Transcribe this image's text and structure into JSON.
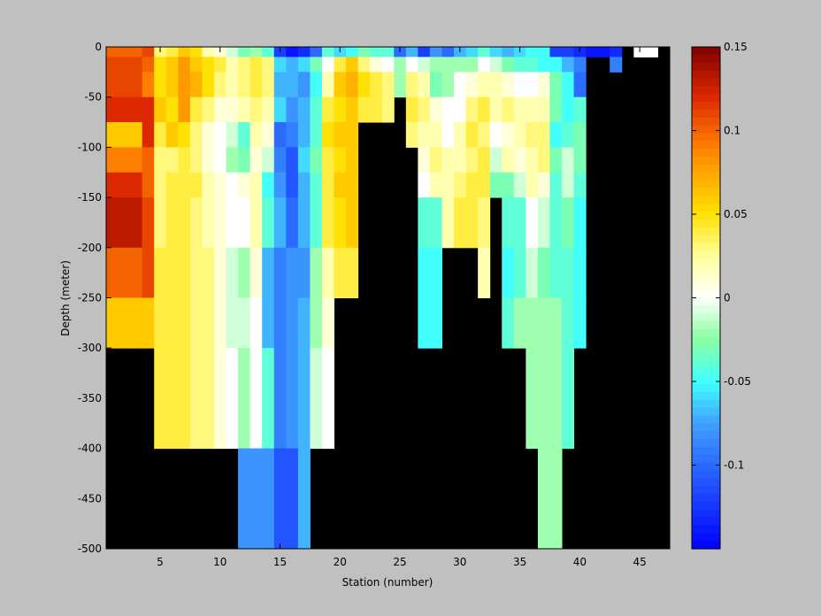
{
  "chart_data": {
    "type": "heatmap",
    "title": "",
    "xlabel": "Station (number)",
    "ylabel": "Depth (meter)",
    "xlim": [
      1,
      47
    ],
    "ylim": [
      -500,
      0
    ],
    "xticks": [
      5,
      10,
      15,
      20,
      25,
      30,
      35,
      40,
      45
    ],
    "yticks": [
      0,
      -50,
      -100,
      -150,
      -200,
      -250,
      -300,
      -350,
      -400,
      -450,
      -500
    ],
    "x_tick_labels": [
      "5",
      "10",
      "15",
      "20",
      "25",
      "30",
      "35",
      "40",
      "45"
    ],
    "y_tick_labels": [
      "0",
      "-50",
      "-100",
      "-150",
      "-200",
      "-250",
      "-300",
      "-350",
      "-400",
      "-450",
      "-500"
    ],
    "colorbar": {
      "range": [
        -0.15,
        0.15
      ],
      "ticks": [
        0.15,
        0.1,
        0.05,
        0,
        -0.05,
        -0.1
      ],
      "tick_labels": [
        "0.15",
        "0.1",
        "0.05",
        "0",
        "-0.05",
        "-0.1"
      ]
    },
    "missing_color": "#000000",
    "depth_levels": [
      0,
      -10,
      -25,
      -50,
      -75,
      -100,
      -125,
      -150,
      -200,
      -250,
      -300,
      -400,
      -500
    ],
    "stations": [
      {
        "x": 1,
        "v": [
          0.1,
          0.11,
          0.11,
          0.12,
          0.06,
          0.09,
          0.12,
          0.13,
          0.1,
          0.06
        ]
      },
      {
        "x": 2,
        "v": [
          0.1,
          0.11,
          0.11,
          0.12,
          0.06,
          0.09,
          0.12,
          0.13,
          0.1,
          0.06
        ]
      },
      {
        "x": 3,
        "v": [
          0.1,
          0.11,
          0.11,
          0.12,
          0.06,
          0.09,
          0.12,
          0.13,
          0.1,
          0.06
        ]
      },
      {
        "x": 4,
        "v": [
          0.11,
          0.1,
          0.09,
          0.12,
          0.12,
          0.1,
          0.1,
          0.11,
          0.11,
          0.06
        ]
      },
      {
        "x": 5,
        "v": [
          0.03,
          0.05,
          0.05,
          0.06,
          0.04,
          0.03,
          0.03,
          0.03,
          0.04,
          0.04,
          0.04
        ]
      },
      {
        "x": 6,
        "v": [
          0.04,
          0.06,
          0.06,
          0.05,
          0.06,
          0.03,
          0.04,
          0.04,
          0.04,
          0.04,
          0.04
        ]
      },
      {
        "x": 7,
        "v": [
          0.06,
          0.08,
          0.08,
          0.08,
          0.05,
          0.04,
          0.04,
          0.04,
          0.04,
          0.04,
          0.04
        ]
      },
      {
        "x": 8,
        "v": [
          0.05,
          0.06,
          0.07,
          0.04,
          0.03,
          0.03,
          0.04,
          0.03,
          0.03,
          0.03,
          0.03
        ]
      },
      {
        "x": 9,
        "v": [
          0.02,
          0.05,
          0.05,
          0.03,
          0.01,
          0.01,
          0.02,
          0.02,
          0.03,
          0.03,
          0.03
        ]
      },
      {
        "x": 10,
        "v": [
          0.01,
          0.04,
          0.03,
          0.01,
          0.0,
          0.0,
          0.01,
          0.01,
          0.01,
          0.01,
          0.01
        ]
      },
      {
        "x": 11,
        "v": [
          -0.01,
          0.02,
          0.02,
          0.01,
          -0.01,
          -0.02,
          0.0,
          0.0,
          -0.01,
          -0.01,
          0.0
        ]
      },
      {
        "x": 12,
        "v": [
          -0.03,
          0.03,
          0.03,
          0.02,
          -0.04,
          -0.03,
          0.01,
          0.0,
          -0.02,
          -0.01,
          -0.02,
          -0.08
        ]
      },
      {
        "x": 13,
        "v": [
          -0.02,
          0.04,
          0.04,
          0.03,
          0.02,
          0.01,
          0.02,
          0.02,
          0.01,
          0.0,
          0.0,
          -0.08
        ]
      },
      {
        "x": 14,
        "v": [
          -0.04,
          0.03,
          0.03,
          0.02,
          0.01,
          -0.01,
          -0.05,
          -0.04,
          -0.07,
          -0.07,
          -0.04,
          -0.08
        ]
      },
      {
        "x": 15,
        "v": [
          -0.12,
          -0.06,
          -0.07,
          -0.06,
          -0.1,
          -0.09,
          -0.08,
          -0.07,
          -0.09,
          -0.09,
          -0.09,
          -0.11
        ]
      },
      {
        "x": 16,
        "v": [
          -0.14,
          -0.07,
          -0.07,
          -0.08,
          -0.09,
          -0.11,
          -0.11,
          -0.1,
          -0.08,
          -0.08,
          -0.08,
          -0.11
        ]
      },
      {
        "x": 17,
        "v": [
          -0.13,
          -0.06,
          -0.08,
          -0.07,
          -0.07,
          -0.06,
          -0.07,
          -0.07,
          -0.08,
          -0.07,
          -0.07,
          -0.07
        ]
      },
      {
        "x": 18,
        "v": [
          -0.1,
          -0.03,
          -0.05,
          -0.04,
          -0.04,
          -0.03,
          -0.04,
          -0.04,
          -0.02,
          -0.02,
          -0.01
        ]
      },
      {
        "x": 19,
        "v": [
          -0.04,
          0.0,
          0.02,
          0.04,
          0.05,
          0.04,
          0.04,
          0.04,
          0.02,
          0.01,
          0.0
        ]
      },
      {
        "x": 20,
        "v": [
          -0.06,
          0.04,
          0.06,
          0.05,
          0.06,
          0.05,
          0.06,
          0.05,
          0.04
        ]
      },
      {
        "x": 21,
        "v": [
          -0.05,
          0.06,
          0.07,
          0.06,
          0.06,
          0.06,
          0.06,
          0.06,
          0.04
        ]
      },
      {
        "x": 22,
        "v": [
          -0.03,
          0.03,
          0.05,
          0.04
        ]
      },
      {
        "x": 23,
        "v": [
          -0.04,
          0.01,
          0.04,
          0.04
        ]
      },
      {
        "x": 24,
        "v": [
          -0.04,
          0.0,
          0.03,
          0.03
        ]
      },
      {
        "x": 25,
        "v": [
          -0.1,
          -0.02,
          -0.02
        ]
      },
      {
        "x": 26,
        "v": [
          -0.07,
          0.0,
          0.03,
          0.04,
          0.03
        ]
      },
      {
        "x": 27,
        "v": [
          -0.12,
          -0.01,
          0.02,
          0.03,
          0.02,
          0.01,
          0.0,
          -0.04,
          -0.05,
          -0.05
        ]
      },
      {
        "x": 28,
        "v": [
          -0.08,
          -0.02,
          -0.03,
          0.01,
          0.02,
          0.03,
          0.02,
          -0.04,
          -0.05,
          -0.05
        ]
      },
      {
        "x": 29,
        "v": [
          -0.1,
          -0.02,
          -0.02,
          0.0,
          0.0,
          0.02,
          0.02,
          0.02
        ]
      },
      {
        "x": 30,
        "v": [
          -0.07,
          -0.02,
          0.0,
          0.0,
          0.02,
          0.02,
          0.03,
          0.04
        ]
      },
      {
        "x": 31,
        "v": [
          -0.06,
          -0.02,
          0.01,
          0.03,
          0.04,
          0.03,
          0.04,
          0.04
        ]
      },
      {
        "x": 32,
        "v": [
          -0.04,
          0.0,
          0.02,
          0.04,
          0.03,
          0.04,
          0.04,
          0.03,
          0.02
        ]
      },
      {
        "x": 33,
        "v": [
          -0.06,
          -0.01,
          0.02,
          0.02,
          0.0,
          -0.01,
          -0.03
        ]
      },
      {
        "x": 34,
        "v": [
          -0.07,
          -0.03,
          0.01,
          0.03,
          0.01,
          0.02,
          -0.03,
          -0.04,
          -0.05,
          -0.04
        ]
      },
      {
        "x": 35,
        "v": [
          -0.06,
          -0.04,
          0.0,
          0.02,
          0.02,
          0.01,
          -0.01,
          -0.04,
          -0.04,
          -0.02
        ]
      },
      {
        "x": 36,
        "v": [
          -0.05,
          -0.04,
          0.0,
          0.02,
          0.03,
          0.02,
          0.02,
          0.0,
          -0.01,
          -0.02,
          -0.02
        ]
      },
      {
        "x": 37,
        "v": [
          -0.05,
          -0.05,
          0.01,
          0.02,
          0.03,
          0.03,
          0.01,
          -0.01,
          -0.03,
          -0.02,
          -0.02,
          -0.02
        ]
      },
      {
        "x": 38,
        "v": [
          -0.12,
          -0.05,
          -0.03,
          -0.03,
          -0.05,
          -0.03,
          -0.04,
          -0.04,
          -0.04,
          -0.02,
          -0.02,
          -0.02
        ]
      },
      {
        "x": 39,
        "v": [
          -0.12,
          -0.07,
          -0.05,
          -0.05,
          -0.04,
          -0.01,
          -0.01,
          -0.03,
          -0.04,
          -0.04,
          -0.04
        ]
      },
      {
        "x": 40,
        "v": [
          -0.13,
          -0.09,
          -0.1,
          -0.04,
          -0.03,
          -0.03,
          -0.04,
          -0.05,
          -0.05,
          -0.05
        ]
      },
      {
        "x": 41,
        "v": [
          -0.14
        ]
      },
      {
        "x": 42,
        "v": [
          -0.14
        ]
      },
      {
        "x": 43,
        "v": [
          -0.13,
          -0.09
        ]
      },
      {
        "x": 45,
        "v": [
          0.0
        ]
      },
      {
        "x": 46,
        "v": [
          0.0
        ]
      }
    ]
  }
}
